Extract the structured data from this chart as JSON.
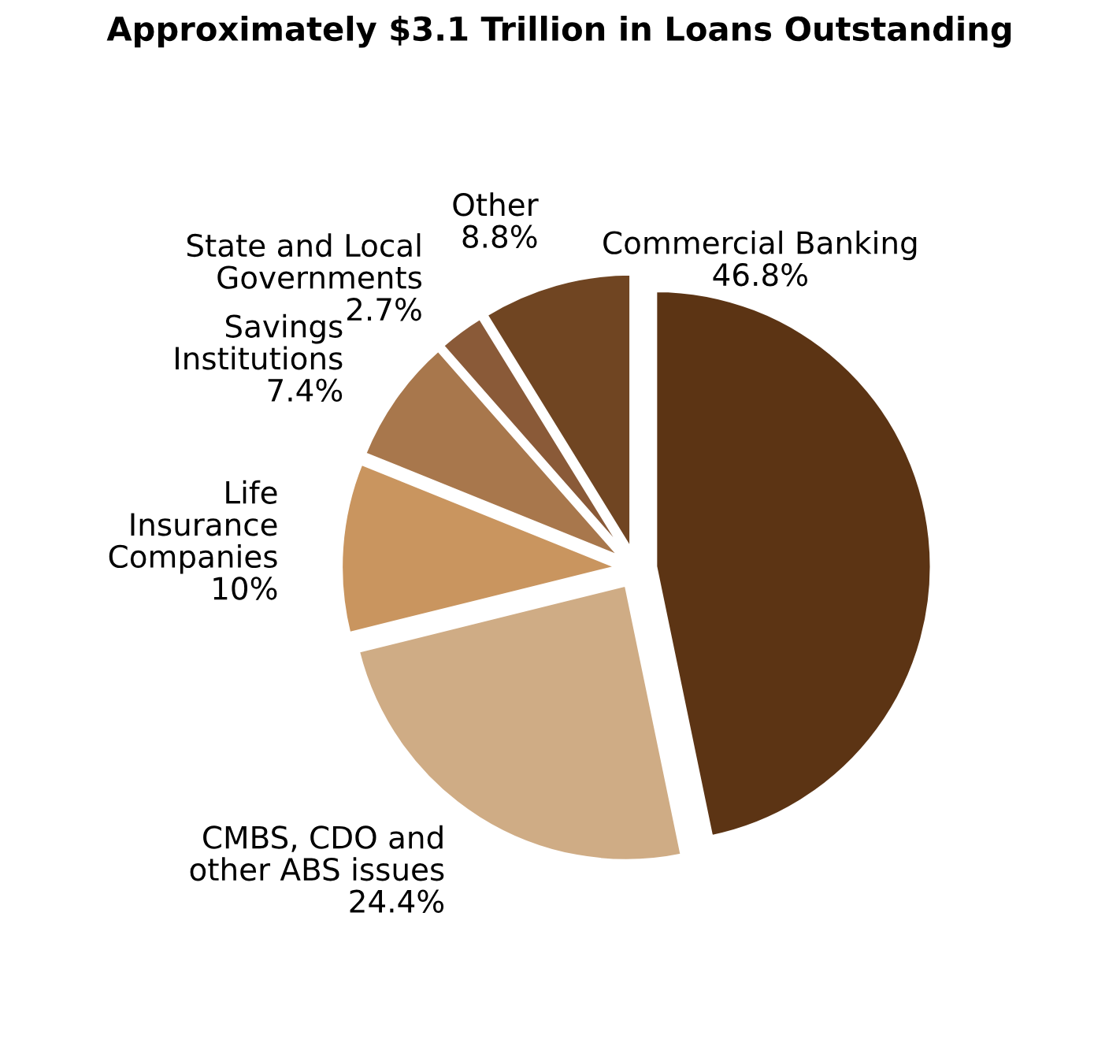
{
  "chart_data": {
    "type": "pie",
    "title": "Approximately $3.1 Trillion in Loans Outstanding",
    "categories": [
      "Commercial Banking",
      "CMBS, CDO and\nother ABS issues",
      "Life\nInsurance\nCompanies",
      "Savings\nInstitutions",
      "State and Local\nGovernments",
      "Other"
    ],
    "values": [
      46.8,
      24.4,
      10,
      7.4,
      2.7,
      8.8
    ],
    "value_labels": [
      "46.8%",
      "24.4%",
      "10%",
      "7.4%",
      "2.7%",
      "8.8%"
    ],
    "colors": [
      "#5c3414",
      "#cfac85",
      "#c9955f",
      "#a8774c",
      "#8a5a38",
      "#704522"
    ]
  }
}
